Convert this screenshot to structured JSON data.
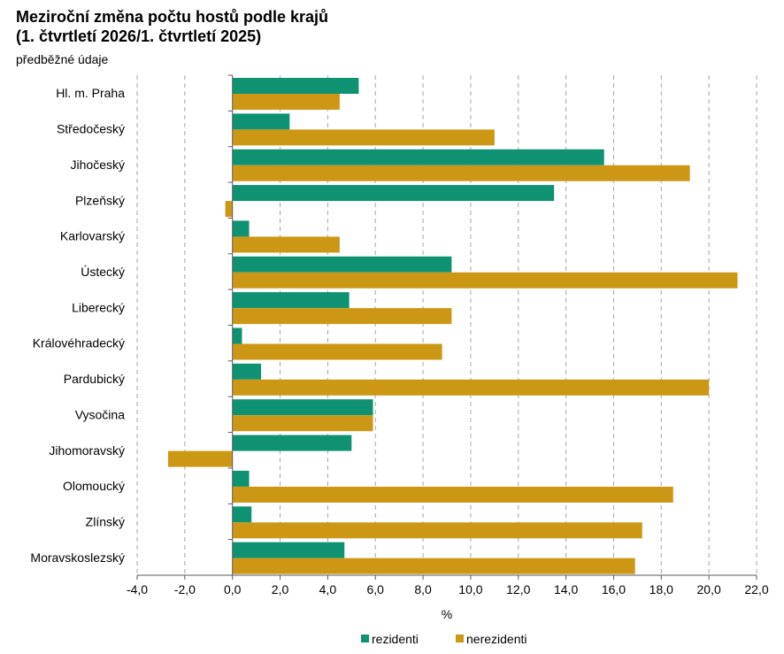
{
  "header": {
    "title_line1": "Meziroční změna počtu hostů podle krajů",
    "title_line2": "(1. čtvrtletí 2026/1. čtvrtletí 2025)",
    "subtitle": "předběžné údaje"
  },
  "chart_data": {
    "type": "bar",
    "orientation": "horizontal",
    "title": "Meziroční změna počtu hostů podle krajů (1. čtvrtletí 2026/1. čtvrtletí 2025)",
    "subtitle": "předběžné údaje",
    "xlabel": "%",
    "ylabel": "",
    "xlim": [
      -4,
      22
    ],
    "xticks": [
      -4,
      -2,
      0,
      2,
      4,
      6,
      8,
      10,
      12,
      14,
      16,
      18,
      20,
      22
    ],
    "xtick_labels": [
      "-4,0",
      "-2,0",
      "0,0",
      "2,0",
      "4,0",
      "6,0",
      "8,0",
      "10,0",
      "12,0",
      "14,0",
      "16,0",
      "18,0",
      "20,0",
      "22,0"
    ],
    "grid": "vertical",
    "legend_position": "bottom",
    "categories": [
      "Hl. m. Praha",
      "Středočeský",
      "Jihočeský",
      "Plzeňský",
      "Karlovarský",
      "Ústecký",
      "Liberecký",
      "Královéhradecký",
      "Pardubický",
      "Vysočina",
      "Jihomoravský",
      "Olomoucký",
      "Zlínský",
      "Moravskoslezský"
    ],
    "series": [
      {
        "name": "rezidenti",
        "color": "#0e9272",
        "values": [
          5.3,
          2.4,
          15.6,
          13.5,
          0.7,
          9.2,
          4.9,
          0.4,
          1.2,
          5.9,
          5.0,
          0.7,
          0.8,
          4.7
        ]
      },
      {
        "name": "nerezidenti",
        "color": "#cc9714",
        "values": [
          4.5,
          11.0,
          19.2,
          -0.3,
          4.5,
          21.2,
          9.2,
          8.8,
          20.0,
          5.9,
          -2.7,
          18.5,
          17.2,
          16.9
        ]
      }
    ]
  }
}
